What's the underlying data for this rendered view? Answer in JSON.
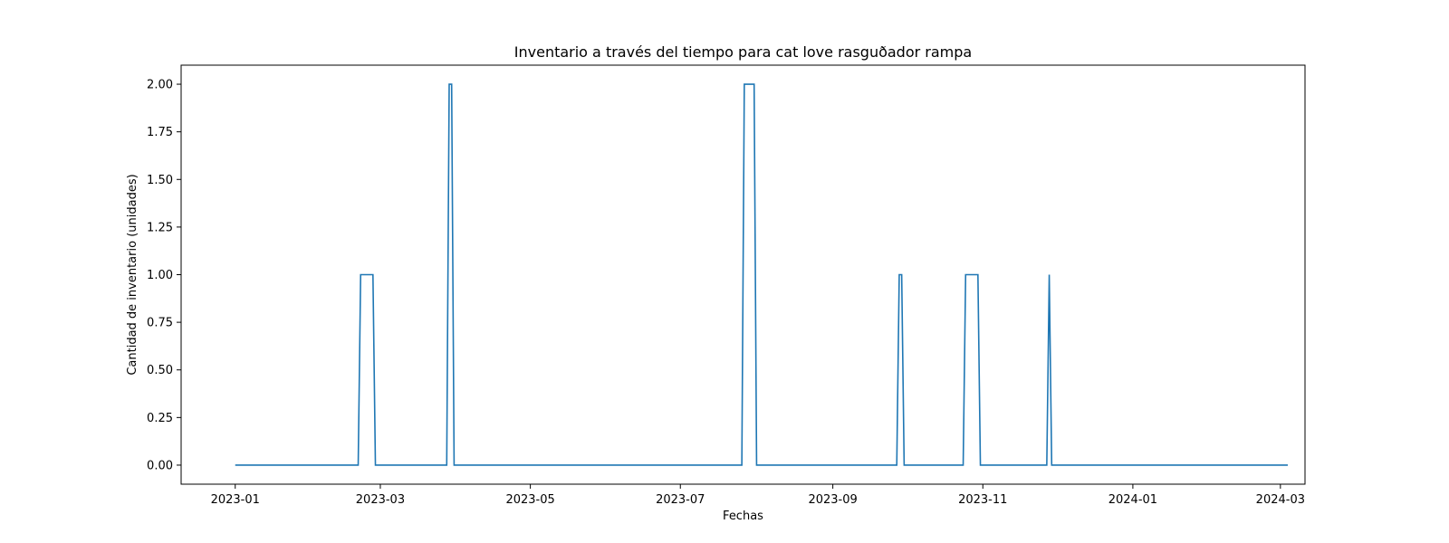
{
  "colors": {
    "line": "#1f77b4",
    "axis": "#000000",
    "background": "#ffffff"
  },
  "chart_data": {
    "type": "line",
    "title": "Inventario a través del tiempo para cat love rasguðador  rampa",
    "xlabel": "Fechas",
    "ylabel": "Cantidad de inventario (unidades)",
    "grid": false,
    "legend": "none",
    "xlim": [
      "2022-12-10",
      "2024-03-11"
    ],
    "ylim": [
      -0.1,
      2.1
    ],
    "x_ticks": [
      "2023-01-01",
      "2023-03-01",
      "2023-05-01",
      "2023-07-01",
      "2023-09-01",
      "2023-11-01",
      "2024-01-01",
      "2024-03-01"
    ],
    "x_tick_labels": [
      "2023-01",
      "2023-03",
      "2023-05",
      "2023-07",
      "2023-09",
      "2023-11",
      "2024-01",
      "2024-03"
    ],
    "y_ticks": [
      0,
      0.25,
      0.5,
      0.75,
      1,
      1.25,
      1.5,
      1.75,
      2
    ],
    "y_tick_labels": [
      "0.00",
      "0.25",
      "0.50",
      "0.75",
      "1.00",
      "1.25",
      "1.50",
      "1.75",
      "2.00"
    ],
    "series": [
      {
        "x": [
          "2023-01-01",
          "2023-02-20",
          "2023-02-21",
          "2023-02-26",
          "2023-02-27",
          "2023-03-28",
          "2023-03-29",
          "2023-03-30",
          "2023-03-31",
          "2023-07-26",
          "2023-07-27",
          "2023-07-31",
          "2023-08-01",
          "2023-09-27",
          "2023-09-28",
          "2023-09-29",
          "2023-09-30",
          "2023-10-24",
          "2023-10-25",
          "2023-10-30",
          "2023-10-31",
          "2023-11-27",
          "2023-11-28",
          "2023-11-29",
          "2024-03-04"
        ],
        "y": [
          0,
          0,
          1,
          1,
          0,
          0,
          2,
          2,
          0,
          0,
          2,
          2,
          0,
          0,
          1,
          1,
          0,
          0,
          1,
          1,
          0,
          0,
          1,
          0,
          0
        ]
      }
    ]
  }
}
